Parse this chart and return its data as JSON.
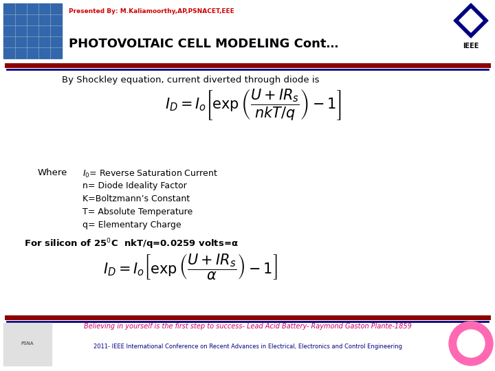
{
  "bg_color": "#ffffff",
  "header_text": "Presented By: M.Kaliamoorthy,AP,PSNACET,EEE",
  "title": "PHOTOVOLTAIC CELL MODELING Cont…",
  "title_color": "#000000",
  "title_fontsize": 13,
  "header_fontsize": 6.5,
  "line1_text": "By Shockley equation, current diverted through diode is",
  "eq1": "$I_D = I_o \\left[ \\exp\\left(\\dfrac{U + IR_s}{nkT / q}\\right) - 1 \\right]$",
  "where_label": "Where",
  "where_lines": [
    "$I_0$= Reverse Saturation Current",
    "n= Diode Ideality Factor",
    "K=Boltzmann’s Constant",
    "T= Absolute Temperature",
    "q= Elementary Charge"
  ],
  "silicon_text": "For silicon of 25$^0$C  nkT/q=0.0259 volts=α",
  "eq2": "$I_D = I_o \\left[ \\exp\\left(\\dfrac{U + IR_s}{\\alpha}\\right) - 1 \\right]$",
  "footer_text": "Believing in yourself is the first step to success- Lead Acid Battery- Raymond Gaston Plante-1859",
  "footer_small": "2011- IEEE International Conference on Recent Advances in Electrical, Electronics and Control Engineering",
  "footer_color": "#CC0066",
  "footer_small_color": "#000080",
  "divider_red": "#8B0000",
  "divider_blue": "#000080"
}
